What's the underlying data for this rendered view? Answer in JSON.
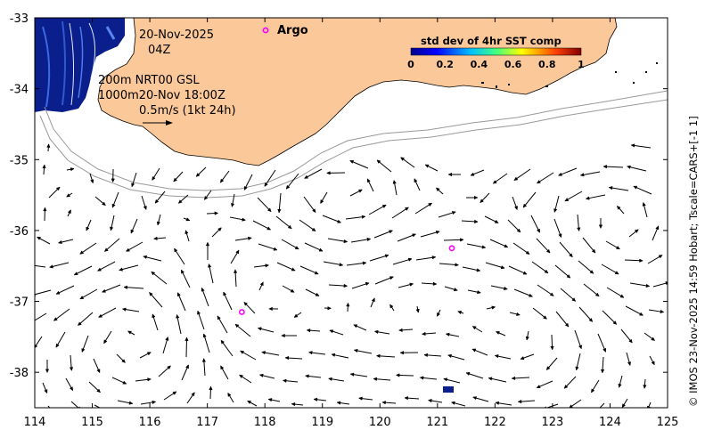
{
  "map": {
    "date_text": "20-Nov-2025",
    "hour_text": "04Z",
    "contour_line_1": "200m  NRT00 GSL",
    "contour_line_2": "1000m20-Nov 18:00Z",
    "scale_arrow_text": "0.5m/s (1kt 24h)",
    "argo_label": "Argo",
    "colorbar": {
      "title": "std dev of 4hr SST comp",
      "ticks": [
        "0",
        "0.2",
        "0.4",
        "0.6",
        "0.8",
        "1"
      ]
    },
    "side_caption": "© IMOS 23-Nov-2025 14:59 Hobart; Tscale=CARS+[-1 1]",
    "x_ticks": [
      "114",
      "115",
      "116",
      "117",
      "118",
      "119",
      "120",
      "121",
      "122",
      "123",
      "124",
      "125"
    ],
    "y_ticks": [
      "-33",
      "-34",
      "-35",
      "-36",
      "-37",
      "-38"
    ],
    "x_range": [
      114,
      125
    ],
    "y_range": [
      -38.5,
      -33
    ],
    "argo_floats": [
      {
        "lon": 121.25,
        "lat": -36.25
      },
      {
        "lon": 117.6,
        "lat": -37.15
      }
    ],
    "colors": {
      "land": "#FBC899",
      "argo_marker": "#FF00FF",
      "current_arrows": "#000000",
      "sst_patch": "#0A1E8C"
    }
  }
}
